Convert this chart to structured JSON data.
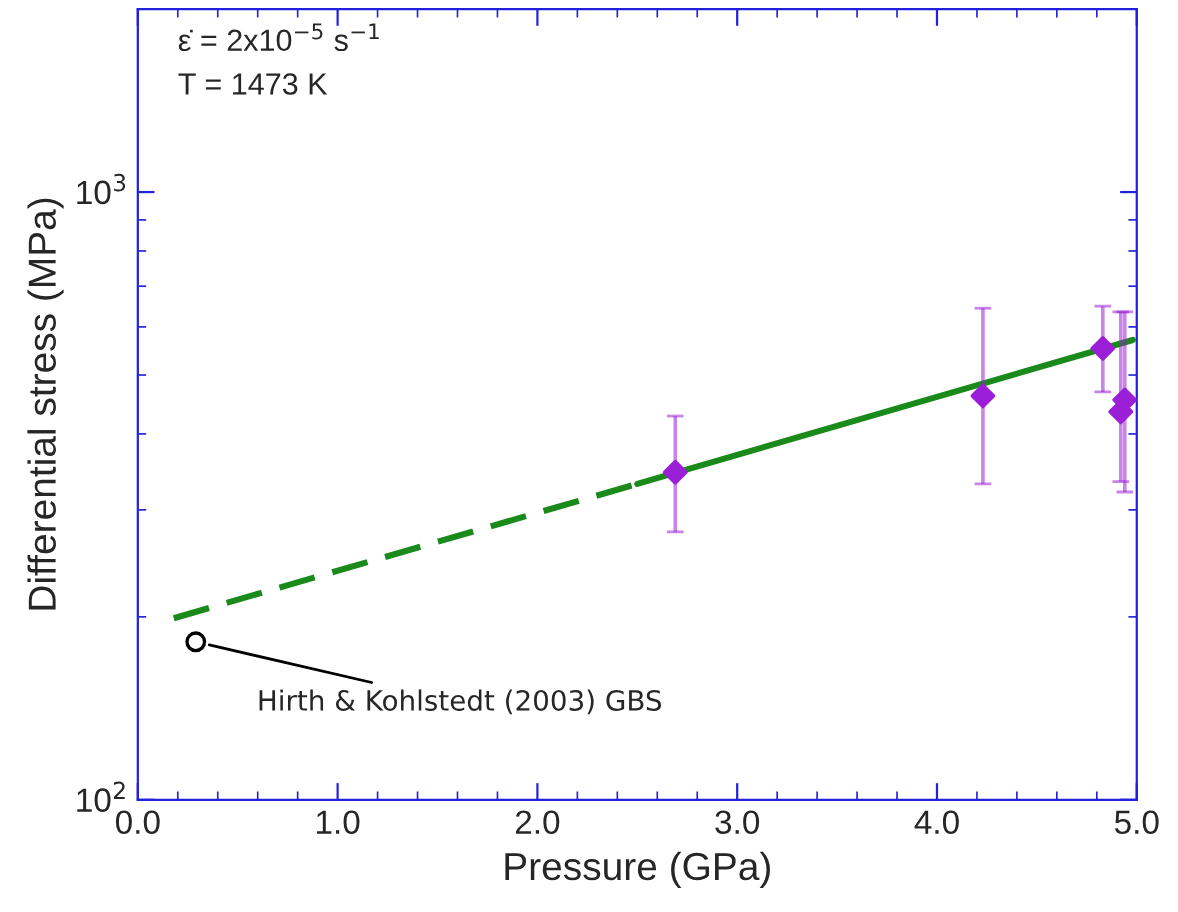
{
  "chart_data": {
    "type": "scatter",
    "xlabel": "Pressure (GPa)",
    "ylabel": "Differential stress (MPa)",
    "log": "y",
    "xlim": [
      0,
      5
    ],
    "ylim": [
      100,
      2000
    ],
    "xticks": [
      {
        "value": 0,
        "label": "0.0"
      },
      {
        "value": 1,
        "label": "1.0"
      },
      {
        "value": 2,
        "label": "2.0"
      },
      {
        "value": 3,
        "label": "3.0"
      },
      {
        "value": 4,
        "label": "4.0"
      },
      {
        "value": 5,
        "label": "5.0"
      }
    ],
    "yticks": [
      {
        "value": 100,
        "label": "10$^{2}$"
      },
      {
        "value": 1000,
        "label": "10$^{3}$"
      }
    ],
    "grid": false,
    "legend": false,
    "series": [
      {
        "type": "line",
        "color": "#1a8a1a",
        "line_style": "dashed",
        "marker": "none",
        "x": [
          0.18,
          2.5
        ],
        "values": [
          199,
          331
        ]
      },
      {
        "type": "line",
        "color": "#1a8a1a",
        "line_style": "solid",
        "marker": "none",
        "x": [
          2.5,
          4.98
        ],
        "values": [
          331,
          571
        ]
      },
      {
        "color": "#000000",
        "marker": "circle",
        "x": [
          0.29
        ],
        "values": [
          182
        ]
      },
      {
        "color": "#9a1fd6",
        "marker": "diamond",
        "x": [
          2.69,
          4.23,
          4.83,
          4.92,
          4.94
        ],
        "values": [
          346,
          462,
          553,
          435,
          455
        ],
        "errors": [
          [
            276,
            428
          ],
          [
            331,
            644
          ],
          [
            469,
            649
          ],
          [
            334,
            635
          ],
          [
            321,
            635
          ]
        ]
      }
    ],
    "annotations": [
      "ε̇ = 2x10$^{−5}$ s$^{−1}$",
      "T = 1473 K",
      {
        "text": "Hirth & Kohlstedt (2003) GBS",
        "x": 0.29,
        "y": 182
      }
    ]
  }
}
